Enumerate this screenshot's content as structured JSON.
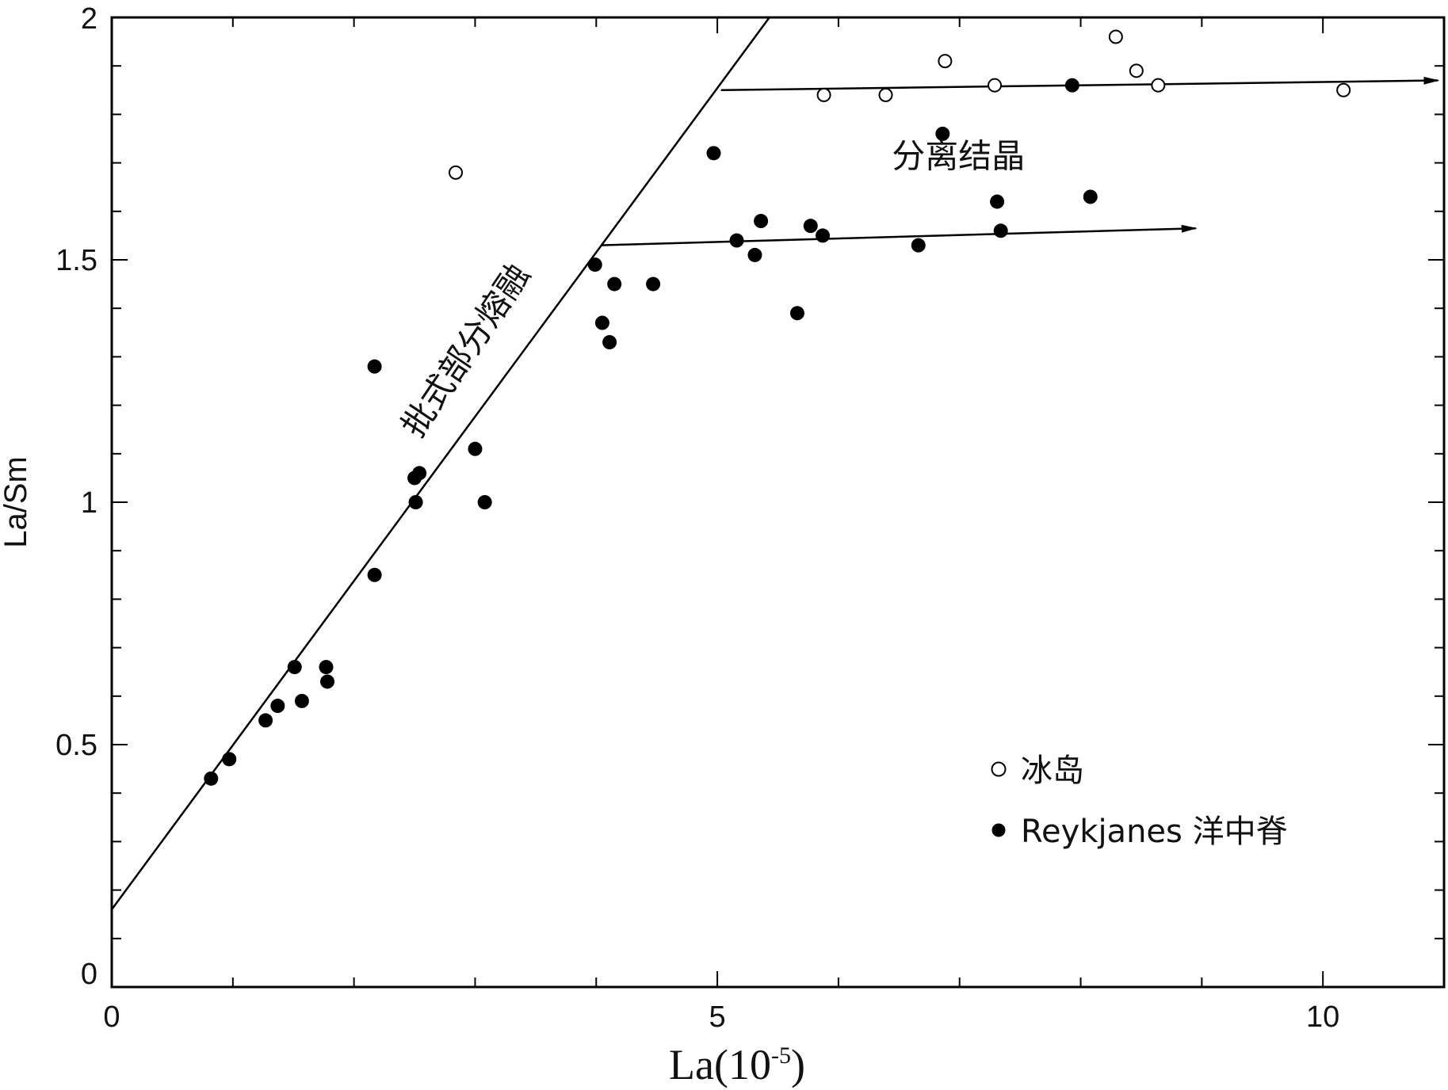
{
  "chart_data": {
    "type": "scatter",
    "xlabel": "La(10-5)",
    "xlabel_base": "La(10",
    "xlabel_exp": "-5",
    "xlabel_close": ")",
    "ylabel": "La/Sm",
    "xlim": [
      0,
      11
    ],
    "ylim": [
      0,
      2
    ],
    "x_ticks": [
      0,
      5,
      10
    ],
    "x_tick_labels": [
      "0",
      "5",
      "10"
    ],
    "y_ticks": [
      0,
      0.5,
      1,
      1.5,
      2
    ],
    "y_tick_labels": [
      "0",
      "0.5",
      "1",
      "1.5",
      "2"
    ],
    "x_minor_step": 1,
    "y_minor_step": 0.1,
    "grid": false,
    "legend_position": "bottom-right",
    "series": [
      {
        "name": "冰岛",
        "marker": "open-circle",
        "color": "#000000",
        "points": [
          [
            2.84,
            1.68
          ],
          [
            5.88,
            1.84
          ],
          [
            6.39,
            1.84
          ],
          [
            6.88,
            1.91
          ],
          [
            7.29,
            1.86
          ],
          [
            8.29,
            1.96
          ],
          [
            8.46,
            1.89
          ],
          [
            8.64,
            1.86
          ],
          [
            10.17,
            1.85
          ]
        ]
      },
      {
        "name": "Reykjanes 洋中脊",
        "marker": "filled-circle",
        "color": "#000000",
        "points": [
          [
            0.82,
            0.43
          ],
          [
            0.97,
            0.47
          ],
          [
            1.27,
            0.55
          ],
          [
            1.37,
            0.58
          ],
          [
            1.51,
            0.66
          ],
          [
            1.57,
            0.59
          ],
          [
            1.77,
            0.66
          ],
          [
            1.78,
            0.63
          ],
          [
            2.17,
            1.28
          ],
          [
            2.17,
            0.85
          ],
          [
            2.5,
            1.05
          ],
          [
            2.51,
            1.0
          ],
          [
            2.54,
            1.06
          ],
          [
            3.0,
            1.11
          ],
          [
            3.08,
            1.0
          ],
          [
            3.99,
            1.49
          ],
          [
            4.05,
            1.37
          ],
          [
            4.11,
            1.33
          ],
          [
            4.15,
            1.45
          ],
          [
            4.47,
            1.45
          ],
          [
            4.97,
            1.72
          ],
          [
            5.16,
            1.54
          ],
          [
            5.31,
            1.51
          ],
          [
            5.36,
            1.58
          ],
          [
            5.66,
            1.39
          ],
          [
            5.77,
            1.57
          ],
          [
            5.87,
            1.55
          ],
          [
            6.66,
            1.53
          ],
          [
            6.86,
            1.76
          ],
          [
            7.31,
            1.62
          ],
          [
            7.34,
            1.56
          ],
          [
            7.93,
            1.86
          ],
          [
            8.08,
            1.63
          ]
        ]
      }
    ],
    "lines": [
      {
        "from": [
          0,
          0.16
        ],
        "to": [
          5.43,
          2.0
        ],
        "arrow": false
      },
      {
        "from": [
          5.03,
          1.85
        ],
        "to": [
          10.95,
          1.87
        ],
        "arrow": true
      },
      {
        "from": [
          4.04,
          1.53
        ],
        "to": [
          8.95,
          1.565
        ],
        "arrow": true
      }
    ],
    "annotations": [
      {
        "text": "批式部分熔融",
        "x": 3.0,
        "y": 1.3,
        "rotation": -56
      },
      {
        "text": "分离结晶",
        "x": 6.99,
        "y": 1.69,
        "rotation": 0
      }
    ]
  }
}
